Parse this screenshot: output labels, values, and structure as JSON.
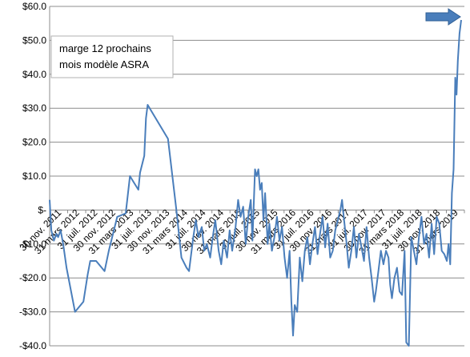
{
  "chart_data": {
    "type": "line",
    "title": "",
    "xlabel": "",
    "ylabel": "",
    "ylim": [
      -40,
      60
    ],
    "y_ticks": [
      60,
      50,
      40,
      30,
      20,
      10,
      0,
      -10,
      -20,
      -30,
      -40
    ],
    "y_tick_labels": [
      "$60.0",
      "$50.0",
      "$40.0",
      "$30.0",
      "$20.0",
      "$10.0",
      "$-",
      "-$10.0",
      "-$20.0",
      "-$30.0",
      "-$40.0"
    ],
    "x_tick_labels": [
      "30 nov. 2011",
      "31 mars 2012",
      "31 juil. 2012",
      "30 nov. 2012",
      "31 mars 2013",
      "31 juil. 2013",
      "30 nov. 2013",
      "31 mars 2014",
      "31 juil. 2014",
      "30 nov. 2014",
      "31 mars 2015",
      "31 juil. 2015",
      "30 nov. 2015",
      "31 mars 2016",
      "31 juil. 2016",
      "30 nov. 2016",
      "31 mars 2017",
      "31 juil. 2017",
      "30 nov. 2017",
      "31 mars 2018",
      "31 juil. 2018",
      "30 nov. 2018",
      "31 mars 2019"
    ],
    "grid": true,
    "line_color": "#4a7ebb",
    "arrow_color": "#4a7ebb",
    "annotation_lines": [
      "marge 12  prochains",
      "mois modèle ASRA"
    ],
    "series": [
      {
        "values": [
          [
            0,
            3
          ],
          [
            0.2,
            -6
          ],
          [
            0.5,
            -9
          ],
          [
            0.8,
            -7
          ],
          [
            1.0,
            -8
          ],
          [
            1.3,
            -6
          ],
          [
            1.6,
            -10
          ],
          [
            2.0,
            -17
          ],
          [
            3.0,
            -30
          ],
          [
            4.0,
            -27
          ],
          [
            4.5,
            -19
          ],
          [
            4.8,
            -15
          ],
          [
            5.5,
            -15
          ],
          [
            6.5,
            -18
          ],
          [
            7.0,
            -12
          ],
          [
            8.0,
            -2
          ],
          [
            9.0,
            -1
          ],
          [
            9.5,
            10
          ],
          [
            10.0,
            8
          ],
          [
            10.5,
            6
          ],
          [
            10.7,
            11
          ],
          [
            11.0,
            14
          ],
          [
            11.2,
            16
          ],
          [
            11.4,
            27
          ],
          [
            11.6,
            31
          ],
          [
            14.0,
            21
          ],
          [
            15.0,
            0
          ],
          [
            15.6,
            -14
          ],
          [
            16.2,
            -17
          ],
          [
            16.5,
            -18
          ],
          [
            17.0,
            -8
          ],
          [
            17.3,
            -3
          ],
          [
            17.6,
            -8
          ],
          [
            18.0,
            -5
          ],
          [
            18.3,
            -12
          ],
          [
            18.6,
            -10
          ],
          [
            19.0,
            -14
          ],
          [
            19.3,
            -8
          ],
          [
            19.6,
            -3
          ],
          [
            20.0,
            -12
          ],
          [
            20.3,
            -16
          ],
          [
            20.6,
            -9
          ],
          [
            21.0,
            -14
          ],
          [
            21.3,
            -6
          ],
          [
            21.6,
            -12
          ],
          [
            22.0,
            -5
          ],
          [
            22.3,
            3
          ],
          [
            22.6,
            -2
          ],
          [
            22.9,
            1
          ],
          [
            23.2,
            -10
          ],
          [
            23.5,
            -2
          ],
          [
            23.8,
            3
          ],
          [
            24.0,
            -9
          ],
          [
            24.3,
            12
          ],
          [
            24.5,
            10
          ],
          [
            24.7,
            12
          ],
          [
            24.9,
            6
          ],
          [
            25.1,
            8
          ],
          [
            25.3,
            -3
          ],
          [
            25.5,
            5
          ],
          [
            25.8,
            -10
          ],
          [
            26.0,
            -4
          ],
          [
            26.3,
            -12
          ],
          [
            26.6,
            -8
          ],
          [
            26.9,
            -2
          ],
          [
            27.2,
            -9
          ],
          [
            27.5,
            -5
          ],
          [
            27.8,
            -14
          ],
          [
            28.1,
            -20
          ],
          [
            28.4,
            -12
          ],
          [
            28.6,
            -27
          ],
          [
            28.8,
            -37
          ],
          [
            29.0,
            -28
          ],
          [
            29.3,
            -30
          ],
          [
            29.6,
            -14
          ],
          [
            29.9,
            -21
          ],
          [
            30.2,
            -12
          ],
          [
            30.5,
            -8
          ],
          [
            30.8,
            -16
          ],
          [
            31.1,
            -10
          ],
          [
            31.4,
            -5
          ],
          [
            31.7,
            -13
          ],
          [
            32.0,
            -7
          ],
          [
            32.3,
            -2
          ],
          [
            32.6,
            -11
          ],
          [
            32.9,
            -4
          ],
          [
            33.2,
            -14
          ],
          [
            33.5,
            -12
          ],
          [
            33.8,
            -6
          ],
          [
            34.1,
            -3
          ],
          [
            34.4,
            0
          ],
          [
            34.6,
            3
          ],
          [
            34.8,
            -2
          ],
          [
            35.1,
            -9
          ],
          [
            35.4,
            -17
          ],
          [
            35.7,
            -12
          ],
          [
            36.0,
            -5
          ],
          [
            36.3,
            -14
          ],
          [
            36.6,
            -7
          ],
          [
            36.9,
            -11
          ],
          [
            37.2,
            -15
          ],
          [
            37.5,
            -5
          ],
          [
            37.8,
            -14
          ],
          [
            38.1,
            -20
          ],
          [
            38.4,
            -27
          ],
          [
            38.6,
            -24
          ],
          [
            38.9,
            -18
          ],
          [
            39.2,
            -12
          ],
          [
            39.5,
            -16
          ],
          [
            39.8,
            -12
          ],
          [
            40.1,
            -14
          ],
          [
            40.3,
            -22
          ],
          [
            40.5,
            -26
          ],
          [
            40.8,
            -20
          ],
          [
            41.1,
            -17
          ],
          [
            41.4,
            -24
          ],
          [
            41.7,
            -25
          ],
          [
            42.0,
            -12
          ],
          [
            42.2,
            -39
          ],
          [
            42.5,
            -40
          ],
          [
            42.8,
            -8
          ],
          [
            43.1,
            -12
          ],
          [
            43.4,
            -16
          ],
          [
            43.7,
            -8
          ],
          [
            44.0,
            -2
          ],
          [
            44.3,
            -10
          ],
          [
            44.6,
            -7
          ],
          [
            44.9,
            -14
          ],
          [
            45.2,
            -4
          ],
          [
            45.5,
            -13
          ],
          [
            45.8,
            -2
          ],
          [
            46.1,
            -4
          ],
          [
            46.4,
            -12
          ],
          [
            46.7,
            -13
          ],
          [
            47.0,
            -15
          ],
          [
            47.2,
            -10
          ],
          [
            47.4,
            -16
          ],
          [
            47.6,
            5
          ],
          [
            47.8,
            12
          ],
          [
            48.0,
            39
          ],
          [
            48.15,
            34
          ],
          [
            48.3,
            44
          ],
          [
            48.5,
            52
          ],
          [
            48.7,
            56
          ]
        ]
      }
    ]
  }
}
